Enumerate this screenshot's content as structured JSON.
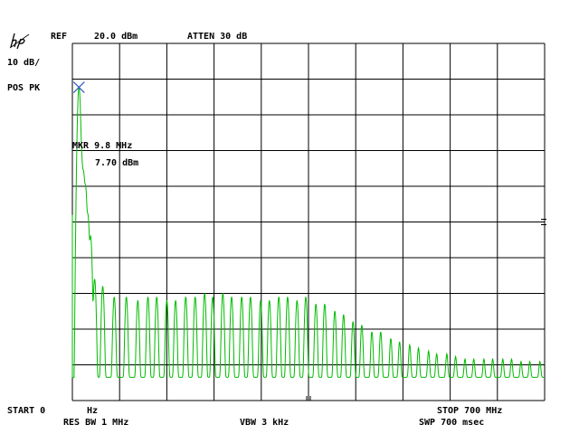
{
  "header": {
    "ref_label": "REF",
    "ref_value": "20.0 dBm",
    "atten": "ATTEN 30 dB",
    "scale": "10 dB/",
    "detector": "POS PK"
  },
  "marker": {
    "label": "MKR 9.8 MHz",
    "value": "7.70 dBm"
  },
  "footer": {
    "start": "START 0",
    "start_unit": "Hz",
    "stop": "STOP 700 MHz",
    "res_bw": "RES BW 1 MHz",
    "vbw": "VBW 3 kHz",
    "sweep": "SWP 700 msec"
  },
  "icons": {
    "logo": "hp-logo-icon",
    "marker": "marker-x-icon"
  },
  "colors": {
    "trace": "#00bb00",
    "marker": "#3355cc",
    "grid": "#000000"
  },
  "chart_data": {
    "type": "line",
    "title": "",
    "xlabel": "",
    "ylabel": "",
    "xlim": [
      0,
      700
    ],
    "ylim": [
      -80,
      20
    ],
    "x_unit": "MHz",
    "y_unit": "dBm",
    "grid": true,
    "noise_floor_dbm": -73.5,
    "marker_point": {
      "x": 9.8,
      "y": 7.7
    },
    "series": [
      {
        "x": [
          9.8,
          11,
          13.5,
          16.5,
          19.5,
          23,
          27,
          33,
          45,
          62,
          80,
          97,
          112,
          125,
          140,
          153,
          168,
          182,
          196,
          208,
          223,
          236,
          251,
          264,
          279,
          292,
          306,
          319,
          333,
          346,
          361,
          374,
          389,
          402,
          416,
          429,
          444,
          457,
          472,
          485,
          500,
          513,
          528,
          540,
          555,
          568,
          582,
          595,
          610,
          623,
          638,
          651,
          665,
          678,
          693
        ],
        "y": [
          7.7,
          -5,
          -12,
          -16,
          -20,
          -28,
          -34,
          -46,
          -48,
          -51,
          -51,
          -52,
          -51,
          -51,
          -52,
          -52,
          -51,
          -51,
          -50,
          -51,
          -50,
          -51,
          -51,
          -51,
          -52,
          -52,
          -51,
          -51,
          -52,
          -51,
          -53,
          -53,
          -55,
          -56,
          -58,
          -59,
          -61,
          -61,
          -63,
          -64,
          -65,
          -66,
          -67,
          -68,
          -68,
          -69,
          -70,
          -70,
          -70,
          -70,
          -70,
          -70,
          -71,
          -71,
          -71
        ]
      }
    ]
  }
}
